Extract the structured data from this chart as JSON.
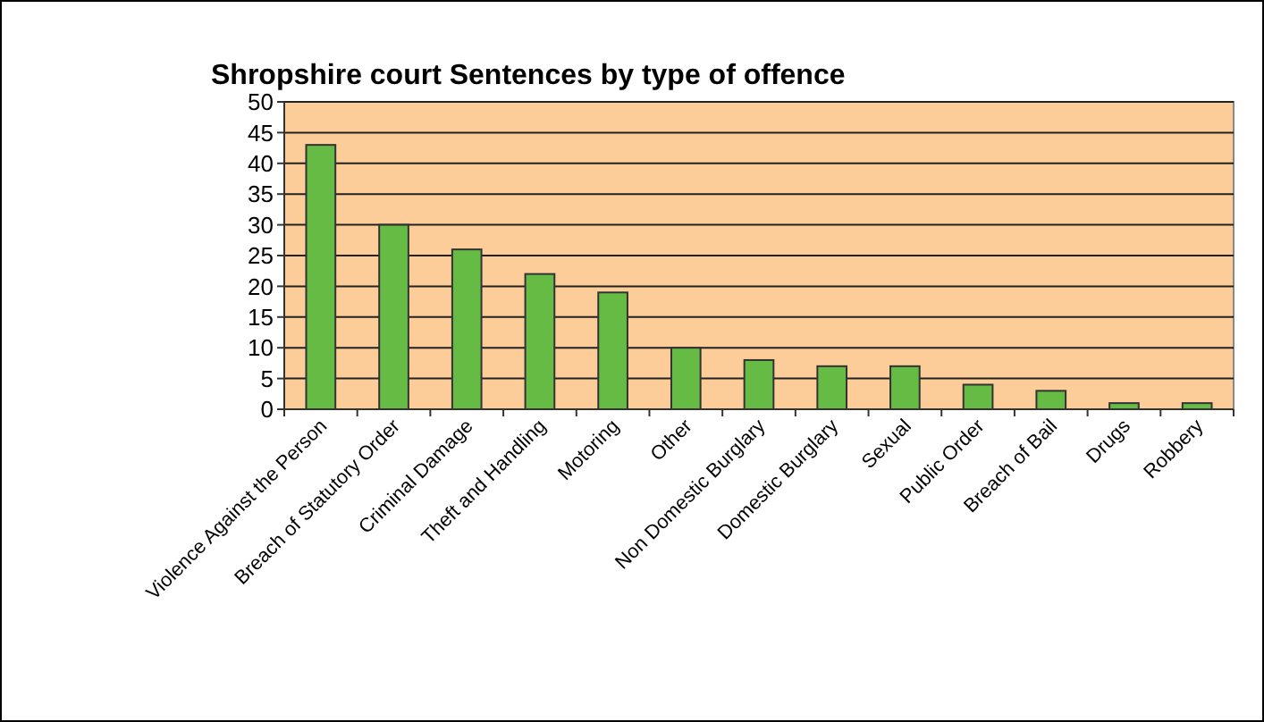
{
  "chart_data": {
    "type": "bar",
    "title": "Shropshire court Sentences by type of offence",
    "categories": [
      "Violence Against the Person",
      "Breach of Statutory Order",
      "Criminal Damage",
      "Theft and Handling",
      "Motoring",
      "Other",
      "Non Domestic Burglary",
      "Domestic Burglary",
      "Sexual",
      "Public Order",
      "Breach of Bail",
      "Drugs",
      "Robbery"
    ],
    "values": [
      43,
      30,
      26,
      22,
      19,
      10,
      8,
      7,
      7,
      4,
      3,
      1,
      1
    ],
    "color": "#66bb44",
    "ylim": [
      0,
      50
    ],
    "yticks": [
      0,
      5,
      10,
      15,
      20,
      25,
      30,
      35,
      40,
      45,
      50
    ],
    "grid": "y"
  }
}
